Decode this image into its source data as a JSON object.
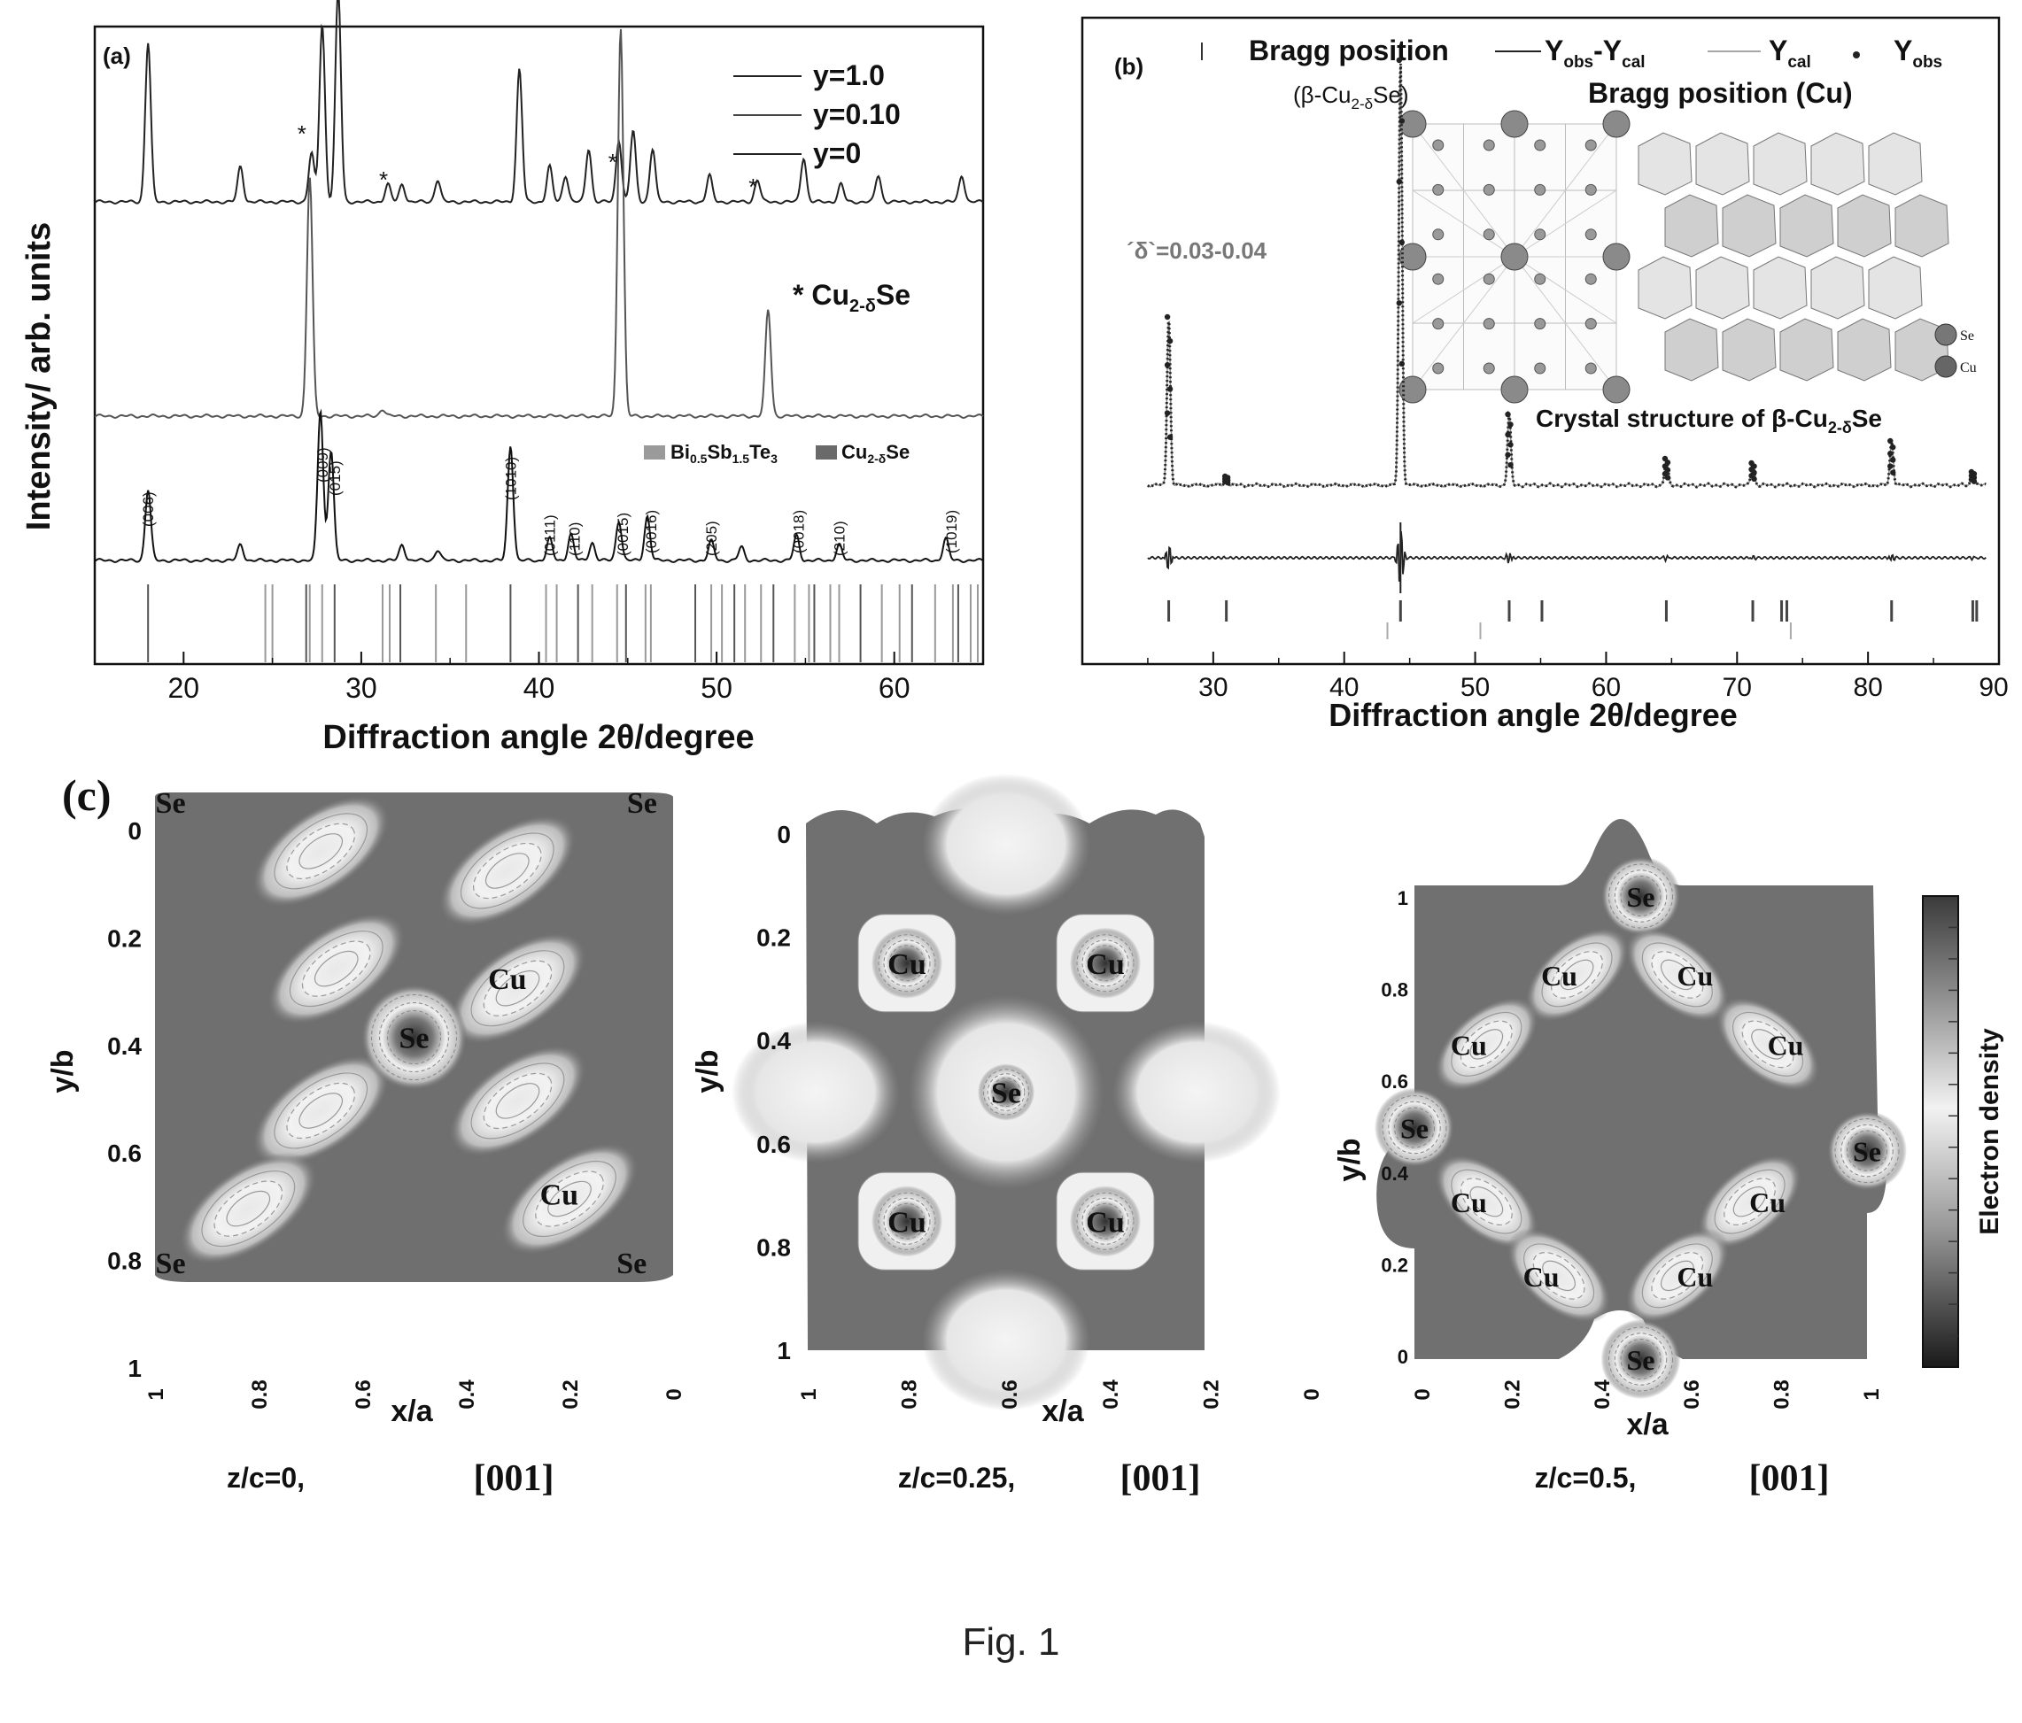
{
  "caption": "Fig. 1",
  "chart_data": [
    {
      "type": "line",
      "panel": "(a)",
      "xlabel": "Diffraction angle 2θ/degree",
      "ylabel": "Intensity/ arb. units",
      "xlim": [
        15,
        65
      ],
      "xticks": [
        "20",
        "30",
        "40",
        "50",
        "60"
      ],
      "series": [
        {
          "name": "y=1.0",
          "peaks": [
            [
              18.0,
              180
            ],
            [
              23.2,
              40
            ],
            [
              27.2,
              55
            ],
            [
              27.8,
              200
            ],
            [
              28.7,
              240
            ],
            [
              31.5,
              20
            ],
            [
              32.3,
              20
            ],
            [
              34.3,
              25
            ],
            [
              38.9,
              150
            ],
            [
              40.6,
              40
            ],
            [
              41.5,
              30
            ],
            [
              42.8,
              60
            ],
            [
              44.5,
              70
            ],
            [
              45.3,
              80
            ],
            [
              46.4,
              60
            ],
            [
              49.6,
              30
            ],
            [
              52.3,
              25
            ],
            [
              54.9,
              50
            ],
            [
              57.0,
              20
            ],
            [
              59.1,
              30
            ],
            [
              63.8,
              30
            ]
          ]
        },
        {
          "name": "y=0.10",
          "peaks": [
            [
              27.1,
              270
            ],
            [
              31.2,
              8
            ],
            [
              44.6,
              440
            ],
            [
              52.9,
              120
            ]
          ]
        },
        {
          "name": "y=0",
          "peaks": [
            [
              18.0,
              80
            ],
            [
              23.2,
              18
            ],
            [
              27.7,
              170
            ],
            [
              28.3,
              125
            ],
            [
              32.3,
              18
            ],
            [
              34.3,
              12
            ],
            [
              38.4,
              130
            ],
            [
              40.6,
              25
            ],
            [
              41.8,
              30
            ],
            [
              43.0,
              20
            ],
            [
              44.5,
              45
            ],
            [
              46.1,
              50
            ],
            [
              49.7,
              22
            ],
            [
              51.4,
              15
            ],
            [
              54.5,
              28
            ],
            [
              56.9,
              18
            ],
            [
              62.9,
              25
            ]
          ]
        }
      ],
      "marker_label": "* Cu2-δSe",
      "marker_positions": [
        26.8,
        31.4,
        44.3,
        52.2
      ],
      "peak_labels": [
        {
          "x": 18.0,
          "text": "(006)"
        },
        {
          "x": 27.8,
          "text": "(009)"
        },
        {
          "x": 28.5,
          "text": "(015)"
        },
        {
          "x": 38.4,
          "text": "(1010)"
        },
        {
          "x": 40.6,
          "text": "(0111)"
        },
        {
          "x": 42.0,
          "text": "(110)"
        },
        {
          "x": 44.7,
          "text": "(0015)"
        },
        {
          "x": 46.3,
          "text": "(0016)"
        },
        {
          "x": 49.7,
          "text": "(205)"
        },
        {
          "x": 54.6,
          "text": "(0018)"
        },
        {
          "x": 56.9,
          "text": "(210)"
        },
        {
          "x": 63.2,
          "text": "(1019)"
        }
      ],
      "reference_legend": [
        "Bi0.5Sb1.5Te3",
        "Cu2-δSe"
      ],
      "reference_ticks": [
        18.0,
        24.6,
        25.0,
        26.9,
        27.1,
        27.8,
        28.5,
        31.2,
        31.6,
        32.2,
        34.2,
        35.9,
        38.4,
        40.4,
        41.0,
        42.2,
        43.0,
        44.4,
        44.9,
        46.0,
        46.3,
        48.8,
        49.7,
        50.3,
        51.0,
        51.6,
        52.5,
        53.2,
        54.4,
        55.2,
        55.5,
        56.4,
        56.9,
        58.1,
        59.3,
        60.3,
        61.0,
        62.3,
        63.3,
        63.6,
        64.3,
        64.7
      ]
    },
    {
      "type": "line",
      "panel": "(b)",
      "xlabel": "Diffraction angle 2θ/degree",
      "xlim": [
        20,
        90
      ],
      "xticks": [
        "30",
        "40",
        "50",
        "60",
        "70",
        "80",
        "90"
      ],
      "legend": [
        "Bragg position",
        "(β-Cu2-δSe)",
        "Yobs-Ycal",
        "Ycal",
        "Yobs",
        "Bragg position (Cu)"
      ],
      "annotation": "´δ`=0.03-0.04",
      "inset_title": "Crystal structure of β-Cu2-δSe",
      "inset_legend": [
        "Se",
        "Cu"
      ],
      "peaks": [
        [
          26.6,
          190
        ],
        [
          31.0,
          10
        ],
        [
          44.3,
          480
        ],
        [
          52.6,
          80
        ],
        [
          64.6,
          30
        ],
        [
          71.2,
          25
        ],
        [
          81.8,
          50
        ],
        [
          88.0,
          15
        ]
      ],
      "bragg_beta": [
        26.6,
        31.0,
        44.3,
        52.6,
        55.1,
        64.6,
        71.2,
        73.4,
        73.8,
        81.8,
        88.0,
        88.3
      ],
      "bragg_cu": [
        43.3,
        50.4,
        74.1
      ]
    },
    {
      "type": "heatmap",
      "panel": "(c)",
      "colorbar_label": "Electron density",
      "maps": [
        {
          "title": "z/c=0,",
          "direction": "[001]",
          "xlabel": "x/a",
          "ylabel": "y/b",
          "xticks": [
            "1",
            "0.8",
            "0.6",
            "0.4",
            "0.2",
            "0"
          ],
          "yticks": [
            "0",
            "0.2",
            "0.4",
            "0.6",
            "0.8",
            "1"
          ],
          "atoms": [
            {
              "label": "Se",
              "x": 0.97,
              "y": 0.02
            },
            {
              "label": "Se",
              "x": 0.06,
              "y": 0.02
            },
            {
              "label": "Se",
              "x": 0.5,
              "y": 0.5
            },
            {
              "label": "Cu",
              "x": 0.32,
              "y": 0.38
            },
            {
              "label": "Cu",
              "x": 0.22,
              "y": 0.82
            },
            {
              "label": "Se",
              "x": 0.97,
              "y": 0.96
            },
            {
              "label": "Se",
              "x": 0.08,
              "y": 0.96
            }
          ]
        },
        {
          "title": "z/c=0.25,",
          "direction": "[001]",
          "xlabel": "x/a",
          "ylabel": "y/b",
          "xticks": [
            "1",
            "0.8",
            "0.6",
            "0.4",
            "0.2",
            "0"
          ],
          "yticks": [
            "0",
            "0.2",
            "0.4",
            "0.6",
            "0.8",
            "1"
          ],
          "atoms": [
            {
              "label": "Cu",
              "x": 0.75,
              "y": 0.25
            },
            {
              "label": "Cu",
              "x": 0.25,
              "y": 0.25
            },
            {
              "label": "Se",
              "x": 0.5,
              "y": 0.5
            },
            {
              "label": "Cu",
              "x": 0.75,
              "y": 0.75
            },
            {
              "label": "Cu",
              "x": 0.25,
              "y": 0.75
            }
          ]
        },
        {
          "title": "z/c=0.5,",
          "direction": "[001]",
          "xlabel": "x/a",
          "ylabel": "y/b",
          "xticks": [
            "0",
            "0.2",
            "0.4",
            "0.6",
            "0.8",
            "1"
          ],
          "yticks": [
            "0",
            "0.2",
            "0.4",
            "0.6",
            "0.8",
            "1"
          ],
          "atoms": [
            {
              "label": "Se",
              "x": 0.5,
              "y": 1.0
            },
            {
              "label": "Cu",
              "x": 0.32,
              "y": 0.83
            },
            {
              "label": "Cu",
              "x": 0.62,
              "y": 0.83
            },
            {
              "label": "Cu",
              "x": 0.12,
              "y": 0.68
            },
            {
              "label": "Cu",
              "x": 0.82,
              "y": 0.68
            },
            {
              "label": "Se",
              "x": 0.0,
              "y": 0.5
            },
            {
              "label": "Se",
              "x": 1.0,
              "y": 0.45
            },
            {
              "label": "Cu",
              "x": 0.12,
              "y": 0.34
            },
            {
              "label": "Cu",
              "x": 0.78,
              "y": 0.34
            },
            {
              "label": "Cu",
              "x": 0.28,
              "y": 0.18
            },
            {
              "label": "Cu",
              "x": 0.62,
              "y": 0.18
            },
            {
              "label": "Se",
              "x": 0.5,
              "y": 0.0
            }
          ]
        }
      ]
    }
  ]
}
